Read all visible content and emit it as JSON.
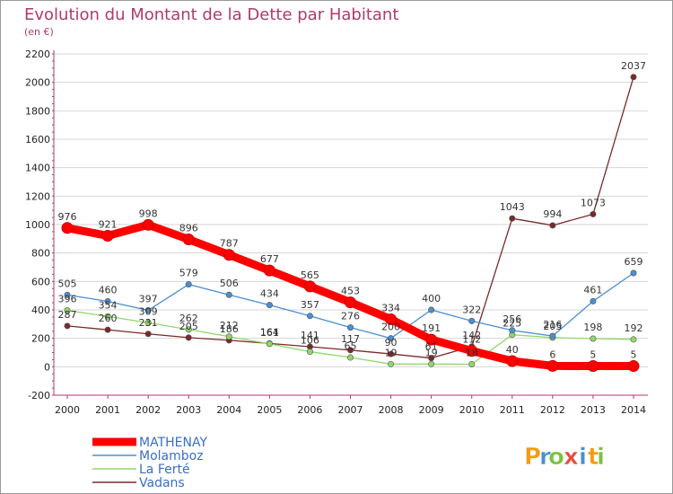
{
  "chart_data": {
    "type": "line",
    "title": "Evolution du Montant de la Dette par Habitant",
    "subtitle": "(en €)",
    "x": [
      2000,
      2001,
      2002,
      2003,
      2004,
      2005,
      2006,
      2007,
      2008,
      2009,
      2010,
      2011,
      2012,
      2013,
      2014
    ],
    "x_tick_labels": [
      "2000",
      "2001",
      "2002",
      "2003",
      "2004",
      "2005",
      "2006",
      "2007",
      "2008",
      "2009",
      "2010",
      "2011",
      "2012",
      "2013",
      "2014"
    ],
    "ylim": [
      -200,
      2200
    ],
    "y_ticks": [
      -200,
      0,
      200,
      400,
      600,
      800,
      1000,
      1200,
      1400,
      1600,
      1800,
      2000,
      2200
    ],
    "y_tick_labels": [
      "-200",
      "0",
      "200",
      "400",
      "600",
      "800",
      "1000",
      "1200",
      "1400",
      "1600",
      "1800",
      "2000",
      "2200"
    ],
    "grid": "horizontal",
    "legend_position": "bottom-left",
    "series": [
      {
        "name": "Vadans",
        "color": "#7a2a2a",
        "values": [
          287,
          260,
          231,
          205,
          186,
          164,
          141,
          117,
          90,
          61,
          142,
          1043,
          994,
          1073,
          2037
        ],
        "labels": [
          "287",
          "260",
          "231",
          "205",
          "186",
          "164",
          "141",
          "117",
          "90",
          "61",
          "142",
          "1043",
          "994",
          "1073",
          "2037"
        ]
      },
      {
        "name": "La Ferté",
        "color": "#90d86a",
        "values": [
          396,
          354,
          309,
          262,
          212,
          161,
          106,
          65,
          19,
          19,
          18,
          225,
          205,
          198,
          192
        ],
        "labels": [
          "396",
          "354",
          "309",
          "262",
          "212",
          "161",
          "106",
          "65",
          "19",
          "19",
          "18",
          "225",
          "205",
          "198",
          "192"
        ]
      },
      {
        "name": "Molamboz",
        "color": "#4a8fd1",
        "values": [
          505,
          460,
          397,
          579,
          506,
          434,
          357,
          276,
          200,
          400,
          322,
          256,
          216,
          461,
          659
        ],
        "labels": [
          "505",
          "460",
          "397",
          "579",
          "506",
          "434",
          "357",
          "276",
          "200",
          "400",
          "322",
          "256",
          "216",
          "461",
          "659"
        ]
      },
      {
        "name": "MATHENAY",
        "color": "#ff0000",
        "values": [
          976,
          921,
          998,
          896,
          787,
          677,
          565,
          453,
          334,
          191,
          112,
          40,
          6,
          5,
          5
        ],
        "labels": [
          "976",
          "921",
          "998",
          "896",
          "787",
          "677",
          "565",
          "453",
          "334",
          "191",
          "112",
          "40",
          "6",
          "5",
          "5"
        ]
      }
    ],
    "legend_order": [
      "MATHENAY",
      "Molamboz",
      "La Ferté",
      "Vadans"
    ]
  },
  "logo": {
    "letters": [
      "P",
      "r",
      "o",
      "x",
      "i",
      "t",
      "i"
    ],
    "colors": [
      "#f39c12",
      "#4a8fd1",
      "#7cc242",
      "#e74c3c",
      "#4a8fd1",
      "#f39c12",
      "#7cc242"
    ]
  }
}
